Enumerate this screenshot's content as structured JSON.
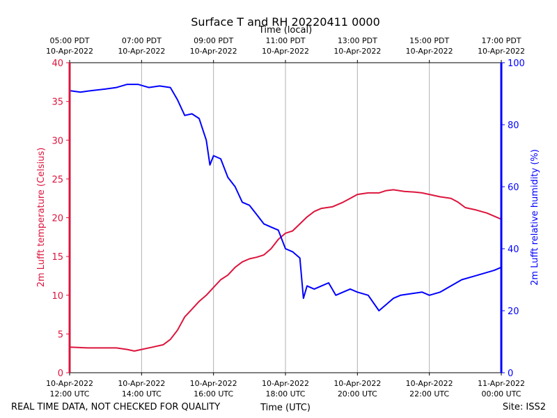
{
  "chart_data": {
    "type": "line",
    "title": "Surface T and RH 20220411 0000",
    "top_axis_label": "Time (local)",
    "xlabel": "Time (UTC)",
    "ylabel_left": "2m Lufft temperature (Celsius)",
    "ylabel_right": "2m Lufft relative humidity (%)",
    "left_color": "#dc143c",
    "right_color": "#0000ff",
    "grid_color": "#b0b0b0",
    "xlim_hours": [
      12,
      24
    ],
    "ylim_left": [
      0,
      40
    ],
    "ylim_right": [
      0,
      100
    ],
    "left_ticks": [
      0,
      5,
      10,
      15,
      20,
      25,
      30,
      35,
      40
    ],
    "right_ticks": [
      0,
      20,
      40,
      60,
      80,
      100
    ],
    "bottom_ticks": [
      {
        "hour": 12,
        "line1": "10-Apr-2022",
        "line2": "12:00 UTC"
      },
      {
        "hour": 14,
        "line1": "10-Apr-2022",
        "line2": "14:00 UTC"
      },
      {
        "hour": 16,
        "line1": "10-Apr-2022",
        "line2": "16:00 UTC"
      },
      {
        "hour": 18,
        "line1": "10-Apr-2022",
        "line2": "18:00 UTC"
      },
      {
        "hour": 20,
        "line1": "10-Apr-2022",
        "line2": "20:00 UTC"
      },
      {
        "hour": 22,
        "line1": "10-Apr-2022",
        "line2": "22:00 UTC"
      },
      {
        "hour": 24,
        "line1": "11-Apr-2022",
        "line2": "00:00 UTC"
      }
    ],
    "top_ticks": [
      {
        "hour": 12,
        "line1": "05:00 PDT",
        "line2": "10-Apr-2022"
      },
      {
        "hour": 14,
        "line1": "07:00 PDT",
        "line2": "10-Apr-2022"
      },
      {
        "hour": 16,
        "line1": "09:00 PDT",
        "line2": "10-Apr-2022"
      },
      {
        "hour": 18,
        "line1": "11:00 PDT",
        "line2": "10-Apr-2022"
      },
      {
        "hour": 20,
        "line1": "13:00 PDT",
        "line2": "10-Apr-2022"
      },
      {
        "hour": 22,
        "line1": "15:00 PDT",
        "line2": "10-Apr-2022"
      },
      {
        "hour": 24,
        "line1": "17:00 PDT",
        "line2": "10-Apr-2022"
      }
    ],
    "series": [
      {
        "name": "2m Lufft temperature",
        "axis": "left",
        "x": [
          12.0,
          12.5,
          13.0,
          13.3,
          13.6,
          13.8,
          14.0,
          14.3,
          14.6,
          14.8,
          15.0,
          15.2,
          15.4,
          15.6,
          15.8,
          16.0,
          16.2,
          16.4,
          16.6,
          16.8,
          17.0,
          17.2,
          17.4,
          17.6,
          17.8,
          18.0,
          18.2,
          18.4,
          18.6,
          18.8,
          19.0,
          19.3,
          19.6,
          19.8,
          20.0,
          20.3,
          20.6,
          20.8,
          21.0,
          21.3,
          21.6,
          21.8,
          22.0,
          22.3,
          22.6,
          22.8,
          23.0,
          23.3,
          23.6,
          24.0
        ],
        "values": [
          3.3,
          3.2,
          3.2,
          3.2,
          3.0,
          2.8,
          3.0,
          3.3,
          3.6,
          4.3,
          5.5,
          7.2,
          8.2,
          9.2,
          10.0,
          11.0,
          12.0,
          12.6,
          13.6,
          14.3,
          14.7,
          14.9,
          15.2,
          16.0,
          17.2,
          18.0,
          18.3,
          19.2,
          20.1,
          20.8,
          21.2,
          21.4,
          22.0,
          22.5,
          23.0,
          23.2,
          23.2,
          23.5,
          23.6,
          23.4,
          23.3,
          23.2,
          23.0,
          22.7,
          22.5,
          22.0,
          21.3,
          21.0,
          20.6,
          19.8
        ]
      },
      {
        "name": "2m Lufft relative humidity",
        "axis": "right",
        "x": [
          12.0,
          12.3,
          12.6,
          13.0,
          13.3,
          13.6,
          13.9,
          14.2,
          14.5,
          14.8,
          15.0,
          15.2,
          15.4,
          15.6,
          15.8,
          15.9,
          16.0,
          16.2,
          16.4,
          16.6,
          16.8,
          17.0,
          17.2,
          17.4,
          17.6,
          17.8,
          18.0,
          18.2,
          18.4,
          18.5,
          18.6,
          18.8,
          19.0,
          19.2,
          19.4,
          19.6,
          19.8,
          20.0,
          20.3,
          20.6,
          20.8,
          21.0,
          21.2,
          21.5,
          21.8,
          22.0,
          22.3,
          22.6,
          22.9,
          23.2,
          23.5,
          23.8,
          24.0
        ],
        "values": [
          91,
          90.5,
          91,
          91.5,
          92,
          93,
          93,
          92,
          92.5,
          92,
          88,
          83,
          83.5,
          82,
          75,
          67,
          70,
          69,
          63,
          60,
          55,
          54,
          51,
          48,
          47,
          46,
          40,
          39,
          37,
          24,
          28,
          27,
          28,
          29,
          25,
          26,
          27,
          26,
          25,
          20,
          22,
          24,
          25,
          25.5,
          26,
          25,
          26,
          28,
          30,
          31,
          32,
          33,
          34
        ]
      }
    ]
  },
  "footer": {
    "left_note": "REAL TIME DATA, NOT CHECKED FOR QUALITY",
    "site": "Site: ISS2"
  }
}
